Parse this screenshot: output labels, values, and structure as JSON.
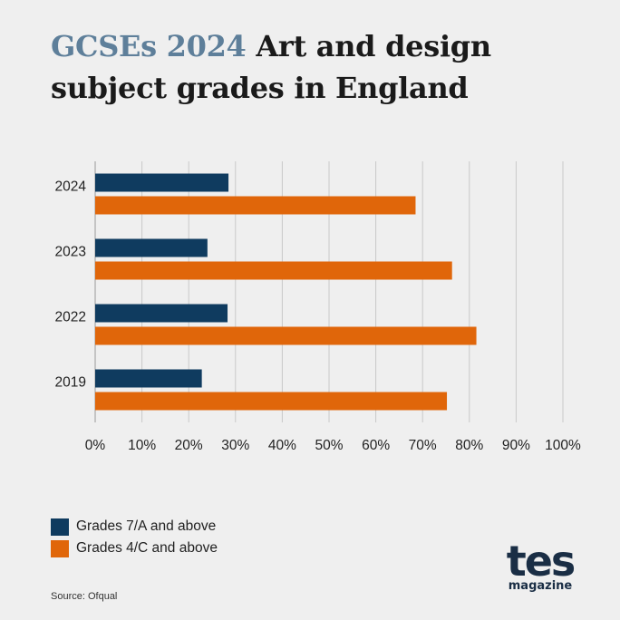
{
  "title": {
    "accent": "GCSEs 2024",
    "rest_line1": " Art and design",
    "line2": "subject grades in England"
  },
  "colors": {
    "grades_7a": "#0f3b5f",
    "grades_4c": "#e0660a",
    "accent": "#5e7f9a",
    "grid": "#c9c9c9"
  },
  "chart_data": {
    "type": "bar",
    "orientation": "horizontal",
    "categories": [
      "2024",
      "2023",
      "2022",
      "2019"
    ],
    "series": [
      {
        "name": "Grades 7/A and above",
        "values": [
          28.5,
          24,
          28.3,
          22.8
        ]
      },
      {
        "name": "Grades 4/C and above",
        "values": [
          68.5,
          76.3,
          81.5,
          75.2
        ]
      }
    ],
    "xlim": [
      0,
      100
    ],
    "xticks": [
      "0%",
      "10%",
      "20%",
      "30%",
      "40%",
      "50%",
      "60%",
      "70%",
      "80%",
      "90%",
      "100%"
    ],
    "grid": true,
    "legend_position": "bottom-left"
  },
  "source": "Source: Ofqual",
  "logo": {
    "main": "tes",
    "sub": "magazine"
  }
}
